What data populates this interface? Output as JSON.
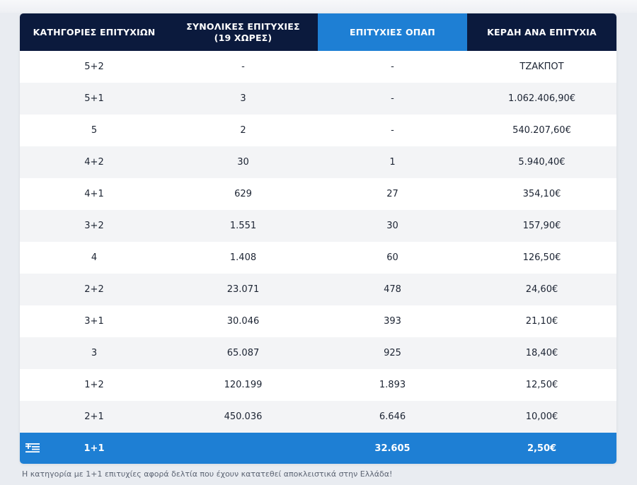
{
  "table": {
    "headers": [
      "ΚΑΤΗΓΟΡΙΕΣ ΕΠΙΤΥΧΙΩΝ",
      "ΣΥΝΟΛΙΚΕΣ ΕΠΙΤΥΧΙΕΣ\n(19 ΧΩΡΕΣ)",
      "ΕΠΙΤΥΧΙΕΣ ΟΠΑΠ",
      "ΚΕΡΔΗ ΑΝΑ ΕΠΙΤΥΧΙΑ"
    ],
    "rows": [
      [
        "5+2",
        "-",
        "-",
        "ΤΖΑΚΠΟΤ"
      ],
      [
        "5+1",
        "3",
        "-",
        "1.062.406,90€"
      ],
      [
        "5",
        "2",
        "-",
        "540.207,60€"
      ],
      [
        "4+2",
        "30",
        "1",
        "5.940,40€"
      ],
      [
        "4+1",
        "629",
        "27",
        "354,10€"
      ],
      [
        "3+2",
        "1.551",
        "30",
        "157,90€"
      ],
      [
        "4",
        "1.408",
        "60",
        "126,50€"
      ],
      [
        "2+2",
        "23.071",
        "478",
        "24,60€"
      ],
      [
        "3+1",
        "30.046",
        "393",
        "21,10€"
      ],
      [
        "3",
        "65.087",
        "925",
        "18,40€"
      ],
      [
        "1+2",
        "120.199",
        "1.893",
        "12,50€"
      ],
      [
        "2+1",
        "450.036",
        "6.646",
        "10,00€"
      ]
    ],
    "greece_row": {
      "flag_icon": "greek-flag-icon",
      "category": "1+1",
      "total": "",
      "opap": "32.605",
      "prize": "2,50€"
    }
  },
  "footnote": "Η κατηγορία με 1+1 επιτυχίες αφορά δελτία που έχουν κατατεθεί αποκλειστικά στην Ελλάδα!",
  "colors": {
    "header_dark": "#0b1a3d",
    "accent_blue": "#1e7fd4",
    "row_alt": "#f3f4f6"
  }
}
